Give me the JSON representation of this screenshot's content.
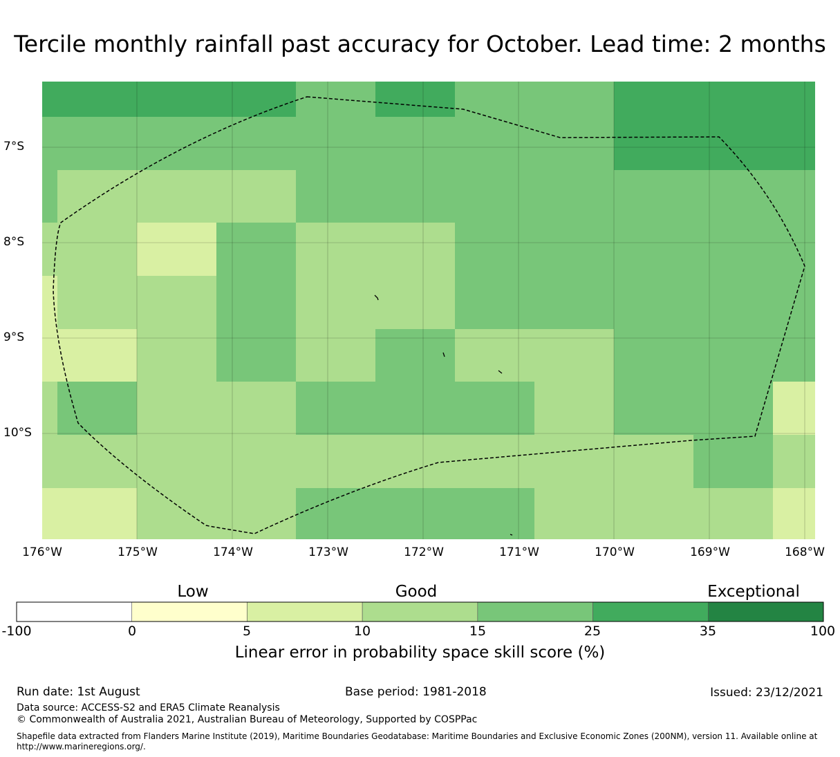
{
  "title": "Tercile monthly rainfall past accuracy for October. Lead time: 2 months",
  "map": {
    "lat_labels": [
      "7°S",
      "8°S",
      "9°S",
      "10°S"
    ],
    "lon_labels": [
      "176°W",
      "175°W",
      "174°W",
      "173°W",
      "172°W",
      "171°W",
      "170°W",
      "169°W",
      "168°W"
    ],
    "colors": {
      "c0": "#ffffcc",
      "c5": "#d9f0a3",
      "c10": "#addd8e",
      "c15": "#78c679",
      "c25": "#41ab5d",
      "c35": "#238443"
    }
  },
  "colorbar": {
    "categories": [
      "Low",
      "Good",
      "Exceptional"
    ],
    "ticks": [
      "-100",
      "0",
      "5",
      "10",
      "15",
      "25",
      "35",
      "100"
    ],
    "bins": [
      "#ffffff",
      "#ffffcc",
      "#d9f0a3",
      "#addd8e",
      "#78c679",
      "#41ab5d",
      "#238443"
    ],
    "label": "Linear error in probability space skill score (%)"
  },
  "footer": {
    "run_date": "Run date: 1st August",
    "base_period": "Base period: 1981-2018",
    "issued": "Issued: 23/12/2021",
    "data_source": "Data source: ACCESS-S2 and ERA5 Climate Reanalysis",
    "copyright": "© Commonwealth of Australia 2021, Australian Bureau of Meteorology, Supported by COSPPac",
    "shapefile": "Shapefile data extracted from Flanders Marine Institute (2019), Maritime Boundaries Geodatabase: Maritime Boundaries and Exclusive Economic Zones (200NM), version 11. Available online at http://www.marineregions.org/."
  }
}
